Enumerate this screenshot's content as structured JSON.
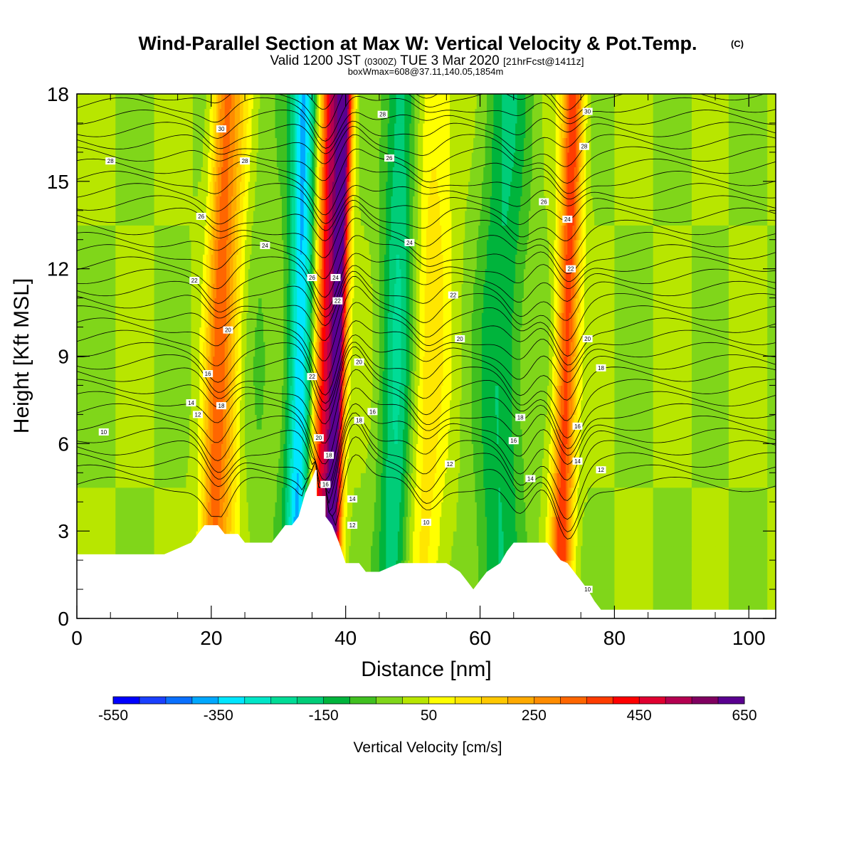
{
  "header": {
    "title": "Wind-Parallel Section at Max W: Vertical Velocity & Pot.Temp.",
    "copyright": "(C)",
    "valid_prefix": "Valid 1200 JST",
    "valid_utc": "(0300Z)",
    "valid_date": "TUE 3 Mar 2020",
    "forecast": "[21hrFcst@1411z]",
    "boxline": "boxWmax=608@37.11,140.05,1854m"
  },
  "chart_data": {
    "type": "heatmap",
    "xlabel": "Distance [nm]",
    "ylabel": "Height [Kft MSL]",
    "xlim": [
      0,
      104
    ],
    "ylim": [
      0,
      18
    ],
    "x_ticks": [
      "0",
      "20",
      "40",
      "60",
      "80",
      "100"
    ],
    "y_ticks": [
      "0",
      "3",
      "6",
      "9",
      "12",
      "15",
      "18"
    ],
    "colorbar": {
      "label": "Vertical Velocity [cm/s]",
      "ticks": [
        "-550",
        "-350",
        "-150",
        "50",
        "250",
        "450",
        "650"
      ],
      "levels_from": -550,
      "level_step": 50,
      "colors": [
        "#0000ff",
        "#1a40ff",
        "#0a70ff",
        "#00a8ff",
        "#00e6ff",
        "#00e6c8",
        "#00dc96",
        "#00cd78",
        "#00b43c",
        "#40c020",
        "#80d61a",
        "#b8e600",
        "#ffff00",
        "#ffe600",
        "#ffc800",
        "#ffaa00",
        "#ff8c00",
        "#ff6600",
        "#ff3c00",
        "#ff0000",
        "#e00030",
        "#b40050",
        "#800060",
        "#5a0090"
      ]
    },
    "terrain_kft": [
      [
        0,
        2.2
      ],
      [
        13,
        2.2
      ],
      [
        15,
        2.4
      ],
      [
        17,
        2.6
      ],
      [
        18,
        2.9
      ],
      [
        19,
        3.2
      ],
      [
        21,
        3.2
      ],
      [
        22,
        2.9
      ],
      [
        24,
        2.9
      ],
      [
        25,
        2.6
      ],
      [
        27,
        2.6
      ],
      [
        28,
        2.6
      ],
      [
        29,
        2.6
      ],
      [
        30,
        2.9
      ],
      [
        31,
        3.2
      ],
      [
        32,
        3.2
      ],
      [
        33,
        3.5
      ],
      [
        34,
        4.3
      ],
      [
        35,
        4.8
      ],
      [
        35.5,
        5.1
      ],
      [
        35.7,
        5.1
      ],
      [
        35.7,
        4.2
      ],
      [
        37,
        4.2
      ],
      [
        37,
        3.5
      ],
      [
        38,
        3.2
      ],
      [
        38.5,
        2.9
      ],
      [
        39,
        2.6
      ],
      [
        40,
        1.9
      ],
      [
        42,
        1.9
      ],
      [
        43,
        1.6
      ],
      [
        45,
        1.6
      ],
      [
        48,
        1.9
      ],
      [
        55,
        1.9
      ],
      [
        57,
        1.6
      ],
      [
        58,
        1.3
      ],
      [
        59,
        1.0
      ],
      [
        60,
        1.3
      ],
      [
        61,
        1.6
      ],
      [
        63,
        1.9
      ],
      [
        64,
        2.3
      ],
      [
        65,
        2.6
      ],
      [
        70,
        2.6
      ],
      [
        71,
        2.3
      ],
      [
        72,
        2.0
      ],
      [
        73,
        1.9
      ],
      [
        74,
        1.6
      ],
      [
        75,
        1.3
      ],
      [
        76,
        1.0
      ],
      [
        77,
        0.6
      ],
      [
        78,
        0.3
      ],
      [
        104,
        0.3
      ]
    ],
    "vertical_velocity_bands_cm_s": [
      {
        "x": 20.5,
        "width": 1.8,
        "amplitude": 250
      },
      {
        "x": 22.5,
        "width": 2.2,
        "amplitude": 150
      },
      {
        "x": 36.5,
        "width": 1.6,
        "amplitude": 450
      },
      {
        "x": 38.5,
        "width": 1.2,
        "amplitude": 600
      },
      {
        "x": 33.0,
        "width": 1.8,
        "amplitude": -350
      },
      {
        "x": 47.5,
        "width": 2.5,
        "amplitude": -200
      },
      {
        "x": 52.0,
        "width": 3.0,
        "amplitude": 120
      },
      {
        "x": 63.0,
        "width": 3.5,
        "amplitude": -150
      },
      {
        "x": 72.5,
        "width": 1.6,
        "amplitude": 380
      }
    ],
    "isentrope_labels": [
      {
        "value": "10",
        "x": 4.0,
        "y": 6.4
      },
      {
        "value": "14",
        "x": 17.0,
        "y": 7.4
      },
      {
        "value": "12",
        "x": 18.0,
        "y": 7.0
      },
      {
        "value": "16",
        "x": 19.5,
        "y": 8.4
      },
      {
        "value": "18",
        "x": 21.5,
        "y": 7.3
      },
      {
        "value": "20",
        "x": 22.5,
        "y": 9.9
      },
      {
        "value": "22",
        "x": 17.5,
        "y": 11.6
      },
      {
        "value": "24",
        "x": 28.0,
        "y": 12.8
      },
      {
        "value": "26",
        "x": 18.5,
        "y": 13.8
      },
      {
        "value": "28",
        "x": 5.0,
        "y": 15.7
      },
      {
        "value": "28",
        "x": 25.0,
        "y": 15.7
      },
      {
        "value": "30",
        "x": 21.5,
        "y": 16.8
      },
      {
        "value": "26",
        "x": 35.0,
        "y": 11.7
      },
      {
        "value": "24",
        "x": 38.5,
        "y": 11.7
      },
      {
        "value": "22",
        "x": 38.8,
        "y": 10.9
      },
      {
        "value": "22",
        "x": 35.0,
        "y": 8.3
      },
      {
        "value": "20",
        "x": 36.0,
        "y": 6.2
      },
      {
        "value": "18",
        "x": 37.5,
        "y": 5.6
      },
      {
        "value": "16",
        "x": 37.0,
        "y": 4.6
      },
      {
        "value": "20",
        "x": 42.0,
        "y": 8.8
      },
      {
        "value": "18",
        "x": 42.0,
        "y": 6.8
      },
      {
        "value": "16",
        "x": 44.0,
        "y": 7.1
      },
      {
        "value": "14",
        "x": 41.0,
        "y": 4.1
      },
      {
        "value": "12",
        "x": 41.0,
        "y": 3.2
      },
      {
        "value": "28",
        "x": 45.5,
        "y": 17.3
      },
      {
        "value": "26",
        "x": 46.5,
        "y": 15.8
      },
      {
        "value": "24",
        "x": 49.5,
        "y": 12.9
      },
      {
        "value": "22",
        "x": 56.0,
        "y": 11.1
      },
      {
        "value": "20",
        "x": 57.0,
        "y": 9.6
      },
      {
        "value": "12",
        "x": 55.5,
        "y": 5.3
      },
      {
        "value": "10",
        "x": 52.0,
        "y": 3.3
      },
      {
        "value": "18",
        "x": 66.0,
        "y": 6.9
      },
      {
        "value": "16",
        "x": 65.0,
        "y": 6.1
      },
      {
        "value": "14",
        "x": 67.5,
        "y": 4.8
      },
      {
        "value": "30",
        "x": 76.0,
        "y": 17.4
      },
      {
        "value": "28",
        "x": 75.5,
        "y": 16.2
      },
      {
        "value": "26",
        "x": 69.5,
        "y": 14.3
      },
      {
        "value": "24",
        "x": 73.0,
        "y": 13.7
      },
      {
        "value": "22",
        "x": 73.5,
        "y": 12.0
      },
      {
        "value": "20",
        "x": 76.0,
        "y": 9.6
      },
      {
        "value": "18",
        "x": 78.0,
        "y": 8.6
      },
      {
        "value": "16",
        "x": 74.5,
        "y": 6.6
      },
      {
        "value": "14",
        "x": 74.5,
        "y": 5.4
      },
      {
        "value": "12",
        "x": 78.0,
        "y": 5.1
      },
      {
        "value": "10",
        "x": 76.0,
        "y": 1.0
      }
    ]
  }
}
